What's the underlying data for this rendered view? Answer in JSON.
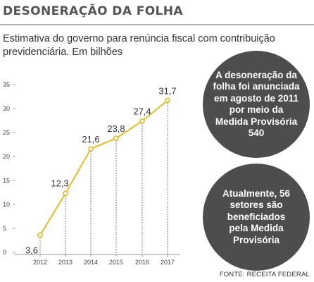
{
  "header": {
    "title": "DESONERAÇÃO DA FOLHA",
    "subtitle": "Estimativa do governo para renúncia fiscal com contribuição previdenciária. Em bilhões"
  },
  "callouts": [
    {
      "text": "A desoneração da folha foi anunciada em agosto de 2011 por meio da Medida Provisória 540"
    },
    {
      "text": "Atualmente, 56 setores são beneficiados pela Medida Provisória"
    }
  ],
  "source": "FONTE: RECEITA FEDERAL",
  "colors": {
    "line": "#e3c03a",
    "bubble": "#4d4d4d",
    "axis": "#999999"
  },
  "chart_data": {
    "type": "line",
    "title": "",
    "xlabel": "",
    "ylabel": "",
    "x": [
      "2012",
      "2013",
      "2014",
      "2015",
      "2016",
      "2017"
    ],
    "series": [
      {
        "values": [
          3.6,
          12.3,
          21.6,
          23.8,
          27.4,
          31.7
        ],
        "labels": [
          "3,6",
          "12,3",
          "21,6",
          "23,8",
          "27,4",
          "31,7"
        ]
      }
    ],
    "ylim": [
      0,
      35
    ],
    "yticks": [
      0,
      5,
      10,
      15,
      20,
      25,
      30,
      35
    ],
    "grid": false,
    "legend": "none"
  }
}
